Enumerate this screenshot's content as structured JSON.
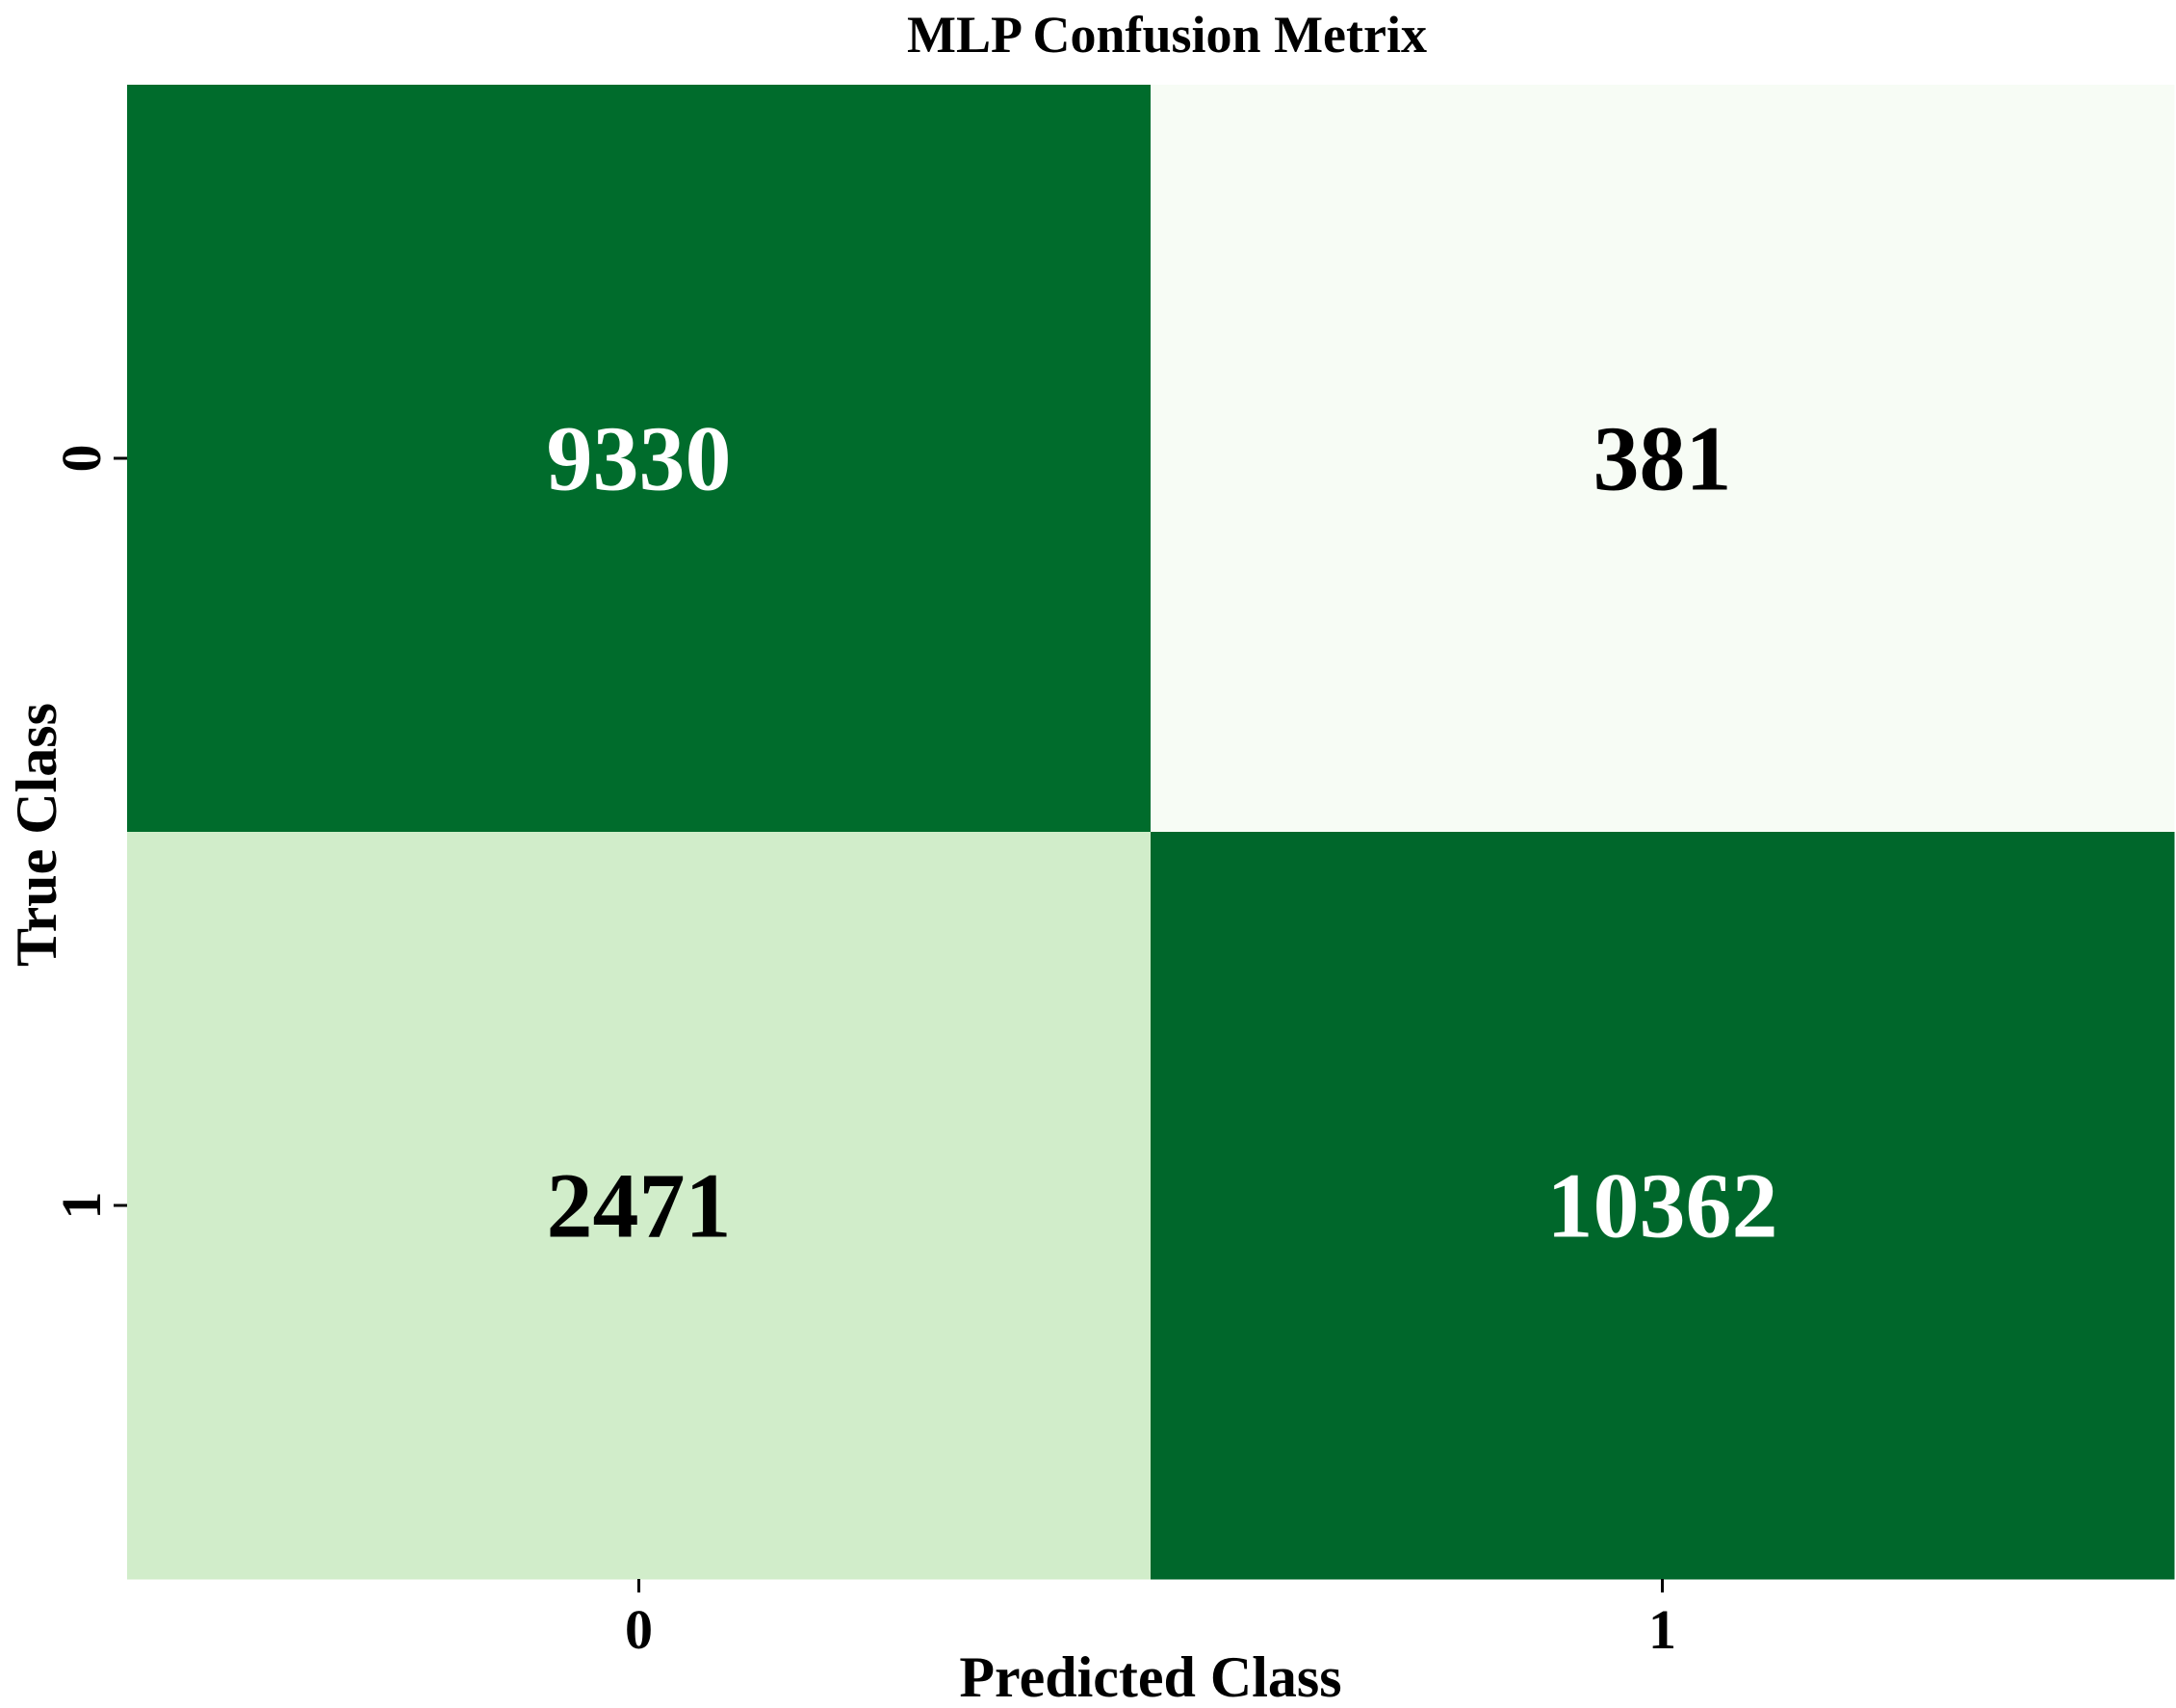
{
  "chart_data": {
    "type": "heatmap",
    "title": "MLP Confusion Metrix",
    "xlabel": "Predicted Class",
    "ylabel": "True Class",
    "x_categories": [
      "0",
      "1"
    ],
    "y_categories": [
      "0",
      "1"
    ],
    "values": [
      [
        9330,
        381
      ],
      [
        2471,
        10362
      ]
    ],
    "colormap": "Greens",
    "colors": {
      "dark": "#00672b",
      "light": "#f6fbf3",
      "mid_light": "#d2ecce",
      "text_on_dark": "#ffffff",
      "text_on_light": "#000000"
    },
    "grid": false,
    "colorbar": false
  }
}
